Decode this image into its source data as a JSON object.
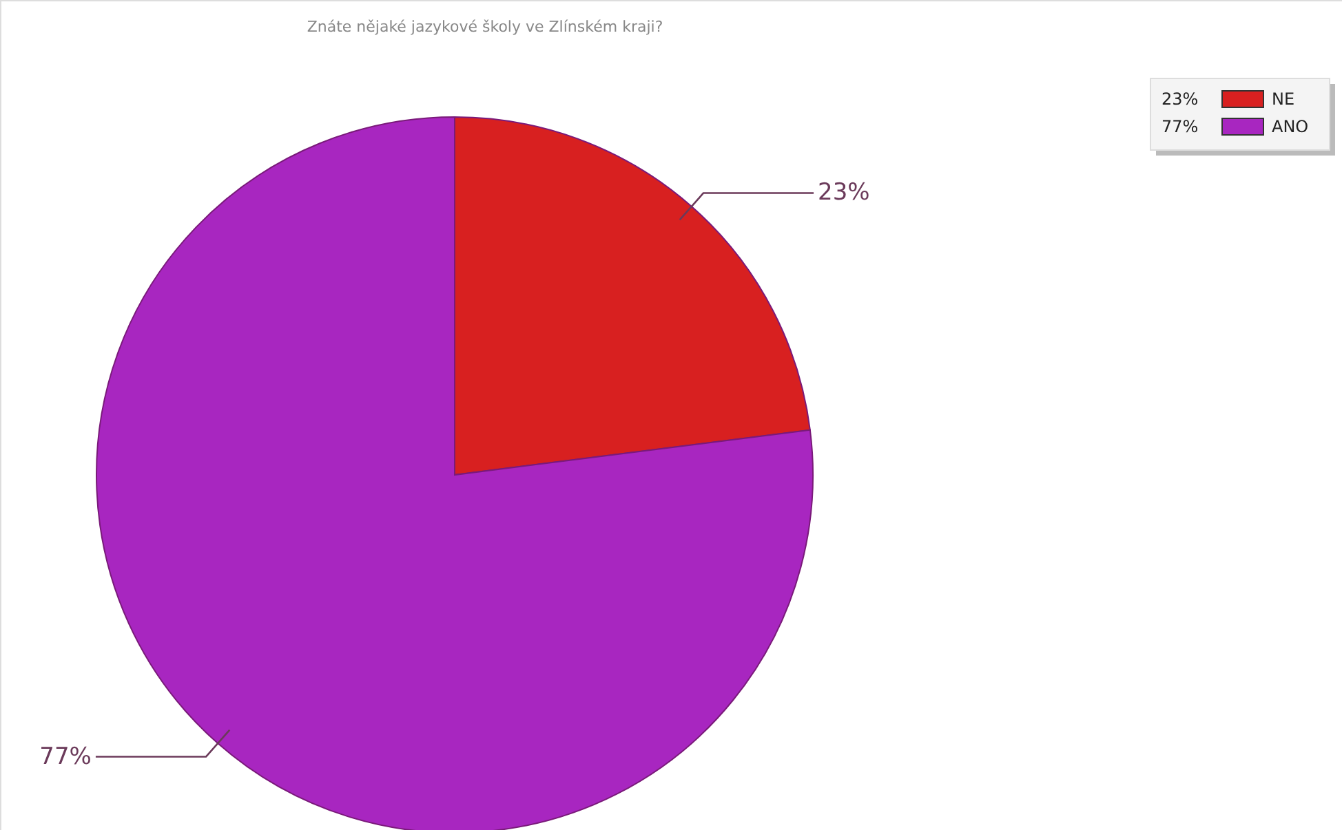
{
  "chart_data": {
    "type": "pie",
    "title": "Znáte nějaké jazykové školy ve Zlínském kraji?",
    "categories": [
      "NE",
      "ANO"
    ],
    "values": [
      23,
      77
    ],
    "colors": [
      "#d82020",
      "#a826c0"
    ],
    "value_labels": [
      "23%",
      "77%"
    ],
    "legend": "top right"
  }
}
